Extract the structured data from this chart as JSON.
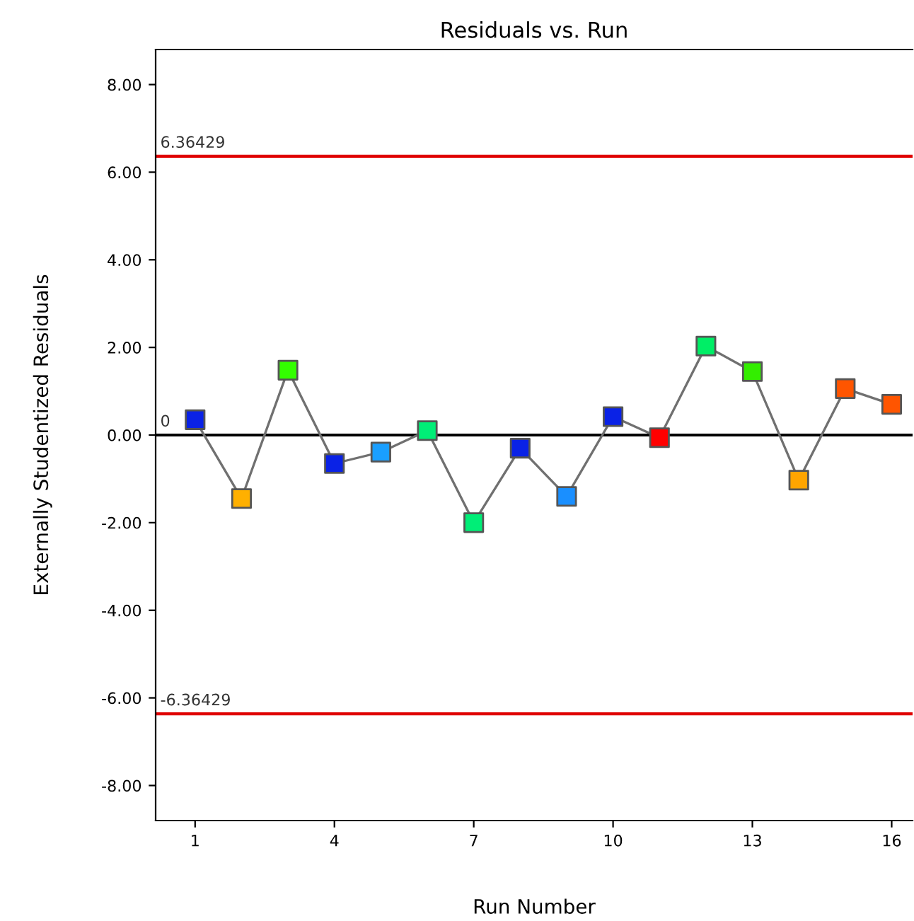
{
  "chart_data": {
    "type": "line",
    "title": "Residuals vs. Run",
    "xlabel": "Run Number",
    "ylabel": "Externally Studentized Residuals",
    "x": [
      1,
      2,
      3,
      4,
      5,
      6,
      7,
      8,
      9,
      10,
      11,
      12,
      13,
      14,
      15,
      16
    ],
    "series": [
      {
        "color": "#707070",
        "marker": "square",
        "values": [
          0.35,
          -1.45,
          1.48,
          -0.65,
          -0.39,
          0.1,
          -2.0,
          -0.3,
          -1.4,
          0.42,
          -0.06,
          2.03,
          1.45,
          -1.03,
          1.06,
          0.7
        ],
        "colors": [
          "#0a22e6",
          "#ffb000",
          "#33ff00",
          "#0a22e6",
          "#1a9fff",
          "#00ee77",
          "#00ee77",
          "#0a22e6",
          "#1a8fff",
          "#0a22e6",
          "#ff0000",
          "#00ee66",
          "#33ee00",
          "#ffa500",
          "#ff5500",
          "#ff5500"
        ]
      }
    ],
    "xlim": [
      0.15,
      16.45
    ],
    "xticks": [
      1,
      4,
      7,
      10,
      13,
      16
    ],
    "ylim": [
      -8.8,
      8.8
    ],
    "yticks": [
      {
        "value": -8,
        "label": "-8.00"
      },
      {
        "value": -6,
        "label": "-6.00"
      },
      {
        "value": -4,
        "label": "-4.00"
      },
      {
        "value": -2,
        "label": "-2.00"
      },
      {
        "value": 0,
        "label": "0.00"
      },
      {
        "value": 2,
        "label": "2.00"
      },
      {
        "value": 4,
        "label": "4.00"
      },
      {
        "value": 6,
        "label": "6.00"
      },
      {
        "value": 8,
        "label": "8.00"
      }
    ],
    "ref_lines": [
      {
        "axis": "y",
        "value": 6.36429,
        "label": "6.36429",
        "color": "#e00000"
      },
      {
        "axis": "y",
        "value": 0,
        "label": "0",
        "color": "#000000"
      },
      {
        "axis": "y",
        "value": -6.36429,
        "label": "-6.36429",
        "color": "#e00000"
      }
    ],
    "grid": false
  }
}
